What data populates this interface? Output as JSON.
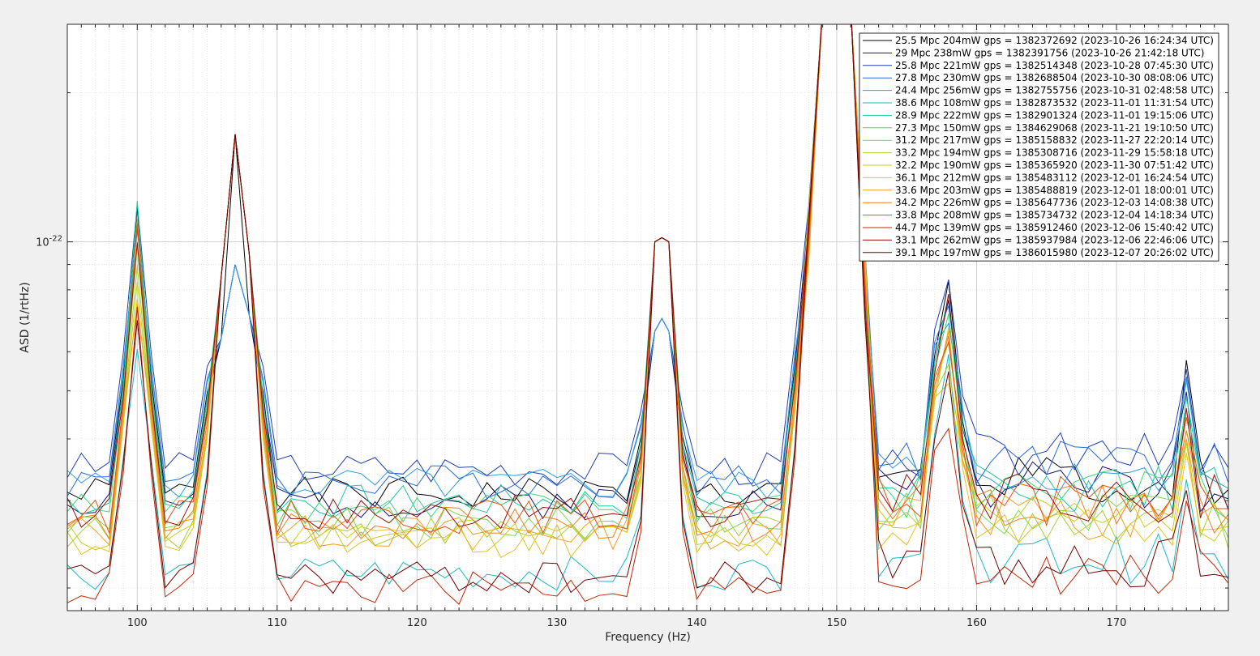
{
  "chart_data": {
    "type": "line",
    "xlabel": "Frequency (Hz)",
    "ylabel": "ASD (1/rtHz)",
    "yscale": "log",
    "xlim": [
      95,
      178
    ],
    "ylim": [
      1.8e-23,
      2.75e-22
    ],
    "grid": true,
    "legend_position": "top-right",
    "x_ticks": [
      100,
      110,
      120,
      130,
      140,
      150,
      160,
      170
    ],
    "y_tick_label": {
      "base": "10",
      "exp": "-22"
    },
    "x": [
      95,
      96,
      97,
      98,
      99,
      100,
      101,
      102,
      103,
      104,
      105,
      106,
      107,
      108,
      109,
      110,
      111,
      112,
      113,
      114,
      115,
      116,
      117,
      118,
      119,
      120,
      121,
      122,
      123,
      124,
      125,
      126,
      127,
      128,
      129,
      130,
      131,
      132,
      133,
      134,
      135,
      136,
      137,
      137.5,
      138,
      139,
      140,
      141,
      142,
      143,
      144,
      145,
      146,
      147,
      148,
      149,
      150,
      151,
      152,
      153,
      154,
      155,
      156,
      157,
      158,
      159,
      160,
      161,
      162,
      163,
      164,
      165,
      166,
      167,
      168,
      169,
      170,
      171,
      172,
      173,
      174,
      175,
      176,
      177,
      178
    ],
    "series": [
      {
        "name": "25.5 Mpc 204mW gps = 1382372692 (2023-10-26 16:24:34 UTC)",
        "color": "#000000",
        "base": 3.1,
        "seed": 1,
        "hf_bump": 1.9
      },
      {
        "name": "29 Mpc 238mW gps = 1382391756 (2023-10-26 21:42:18 UTC)",
        "color": "#1a1070",
        "base": 3.0,
        "seed": 2,
        "hf_bump": 1.4
      },
      {
        "name": "25.8 Mpc 221mW gps = 1382514348 (2023-10-28 07:45:30 UTC)",
        "color": "#1f3fb0",
        "base": 3.5,
        "seed": 3,
        "hf_bump": 1.2
      },
      {
        "name": "27.8 Mpc 230mW gps = 1382688504 (2023-10-30 08:08:06 UTC)",
        "color": "#2a6ad6",
        "base": 3.3,
        "seed": 4,
        "hf_bump": 1.3
      },
      {
        "name": "24.4 Mpc 256mW gps = 1382755756 (2023-10-31 02:48:58 UTC)",
        "color": "#2a9ee0",
        "base": 3.25,
        "seed": 5,
        "hf_bump": 1.3
      },
      {
        "name": "38.6 Mpc 108mW gps = 1382873532 (2023-11-01 11:31:54 UTC)",
        "color": "#1ab8c8",
        "base": 2.15,
        "seed": 6,
        "hf_bump": 1.1
      },
      {
        "name": "28.9 Mpc 222mW gps = 1382901324 (2023-11-01 19:15:06 UTC)",
        "color": "#1ec8a0",
        "base": 3.0,
        "seed": 7,
        "hf_bump": 1.3
      },
      {
        "name": "27.3 Mpc 150mW gps = 1384629068 (2023-11-21 19:10:50 UTC)",
        "color": "#3ad878",
        "base": 2.9,
        "seed": 8,
        "hf_bump": 1.2
      },
      {
        "name": "31.2 Mpc 217mW gps = 1385158832 (2023-11-27 22:20:14 UTC)",
        "color": "#7ad850",
        "base": 2.7,
        "seed": 9,
        "hf_bump": 1.1
      },
      {
        "name": "33.2 Mpc 194mW gps = 1385308716 (2023-11-29 15:58:18 UTC)",
        "color": "#a8d030",
        "base": 2.6,
        "seed": 10,
        "hf_bump": 1.1
      },
      {
        "name": "32.2 Mpc 190mW gps = 1385365920 (2023-11-30 07:51:42 UTC)",
        "color": "#cccc20",
        "base": 2.55,
        "seed": 11,
        "hf_bump": 1.1
      },
      {
        "name": "36.1 Mpc 212mW gps = 1385483112 (2023-12-01 16:24:54 UTC)",
        "color": "#e8c020",
        "base": 2.5,
        "seed": 12,
        "hf_bump": 1.0
      },
      {
        "name": "33.6 Mpc 203mW gps = 1385488819 (2023-12-01 18:00:01 UTC)",
        "color": "#f0a020",
        "base": 2.6,
        "seed": 13,
        "hf_bump": 1.1
      },
      {
        "name": "34.2 Mpc 226mW gps = 1385647736 (2023-12-03 14:08:38 UTC)",
        "color": "#f08020",
        "base": 2.7,
        "seed": 14,
        "hf_bump": 1.1
      },
      {
        "name": "33.8 Mpc 208mW gps = 1385734732 (2023-12-04 14:18:34 UTC)",
        "color": "#e85010",
        "base": 2.8,
        "seed": 15,
        "hf_bump": 1.2
      },
      {
        "name": "44.7 Mpc 139mW gps = 1385912460 (2023-12-06 15:40:42 UTC)",
        "color": "#c02808",
        "base": 2.0,
        "seed": 16,
        "hf_bump": 1.0
      },
      {
        "name": "33.1 Mpc 262mW gps = 1385937984 (2023-12-06 22:46:06 UTC)",
        "color": "#981008",
        "base": 2.85,
        "seed": 17,
        "hf_bump": 1.3
      },
      {
        "name": "39.1 Mpc 197mW gps = 1386015980 (2023-12-07 20:26:02 UTC)",
        "color": "#6e0000",
        "base": 2.1,
        "seed": 18,
        "hf_bump": 1.0
      }
    ]
  }
}
